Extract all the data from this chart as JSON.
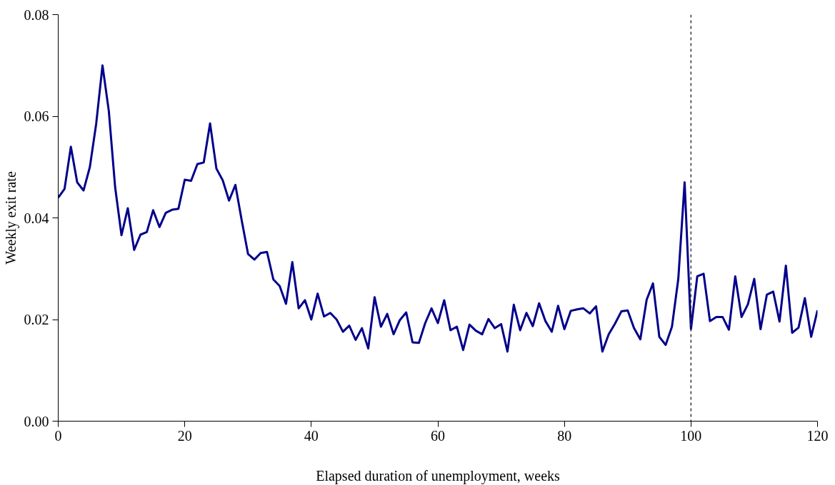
{
  "chart_data": {
    "type": "line",
    "xlabel": "Elapsed duration of unemployment, weeks",
    "ylabel": "Weekly exit rate",
    "x": [
      0,
      1,
      2,
      3,
      4,
      5,
      6,
      7,
      8,
      9,
      10,
      11,
      12,
      13,
      14,
      15,
      16,
      17,
      18,
      19,
      20,
      21,
      22,
      23,
      24,
      25,
      26,
      27,
      28,
      29,
      30,
      31,
      32,
      33,
      34,
      35,
      36,
      37,
      38,
      39,
      40,
      41,
      42,
      43,
      44,
      45,
      46,
      47,
      48,
      49,
      50,
      51,
      52,
      53,
      54,
      55,
      56,
      57,
      58,
      59,
      60,
      61,
      62,
      63,
      64,
      65,
      66,
      67,
      68,
      69,
      70,
      71,
      72,
      73,
      74,
      75,
      76,
      77,
      78,
      79,
      80,
      81,
      82,
      83,
      84,
      85,
      86,
      87,
      88,
      89,
      90,
      91,
      92,
      93,
      94,
      95,
      96,
      97,
      98,
      99,
      100,
      101,
      102,
      103,
      104,
      105,
      106,
      107,
      108,
      109,
      110,
      111,
      112,
      113,
      114,
      115,
      116,
      117,
      118,
      119,
      120
    ],
    "series": [
      {
        "color": "#00008b",
        "values": [
          0.044,
          0.0457,
          0.054,
          0.047,
          0.0454,
          0.05,
          0.0585,
          0.07,
          0.061,
          0.046,
          0.0366,
          0.0419,
          0.0337,
          0.0367,
          0.0372,
          0.0415,
          0.0382,
          0.041,
          0.0416,
          0.0418,
          0.0475,
          0.0473,
          0.0506,
          0.0509,
          0.0586,
          0.0497,
          0.0474,
          0.0434,
          0.0465,
          0.0395,
          0.0329,
          0.0318,
          0.0331,
          0.0333,
          0.0279,
          0.0266,
          0.0231,
          0.0313,
          0.0222,
          0.0238,
          0.02,
          0.0251,
          0.0206,
          0.0213,
          0.02,
          0.0176,
          0.0188,
          0.016,
          0.0183,
          0.0143,
          0.0244,
          0.0186,
          0.0211,
          0.0171,
          0.0199,
          0.0214,
          0.0155,
          0.0154,
          0.0193,
          0.0222,
          0.0193,
          0.0238,
          0.0179,
          0.0186,
          0.014,
          0.019,
          0.0178,
          0.0171,
          0.0201,
          0.0183,
          0.0191,
          0.0137,
          0.0229,
          0.0179,
          0.0213,
          0.0187,
          0.0232,
          0.0197,
          0.0176,
          0.0227,
          0.0181,
          0.0217,
          0.022,
          0.0222,
          0.0212,
          0.0226,
          0.0137,
          0.0171,
          0.0192,
          0.0216,
          0.0218,
          0.0183,
          0.0161,
          0.0239,
          0.0271,
          0.0166,
          0.015,
          0.0186,
          0.028,
          0.047,
          0.0181,
          0.0285,
          0.029,
          0.0197,
          0.0205,
          0.0205,
          0.018,
          0.0285,
          0.0205,
          0.023,
          0.028,
          0.0181,
          0.0249,
          0.0255,
          0.0196,
          0.0306,
          0.0174,
          0.0184,
          0.0242,
          0.0166,
          0.0218
        ]
      }
    ],
    "xlim": [
      0,
      120
    ],
    "xticks": [
      0,
      20,
      40,
      60,
      80,
      100,
      120
    ],
    "ylim": [
      0,
      0.08
    ],
    "yticks": [
      {
        "value": 0,
        "label": "0.00"
      },
      {
        "value": 0.02,
        "label": "0.02"
      },
      {
        "value": 0.04,
        "label": "0.04"
      },
      {
        "value": 0.06,
        "label": "0.06"
      },
      {
        "value": 0.08,
        "label": "0.08"
      }
    ],
    "ref_lines": [
      {
        "axis": "x",
        "value": 100,
        "color": "#333333",
        "line_style": "dashed"
      }
    ],
    "grid": false
  }
}
